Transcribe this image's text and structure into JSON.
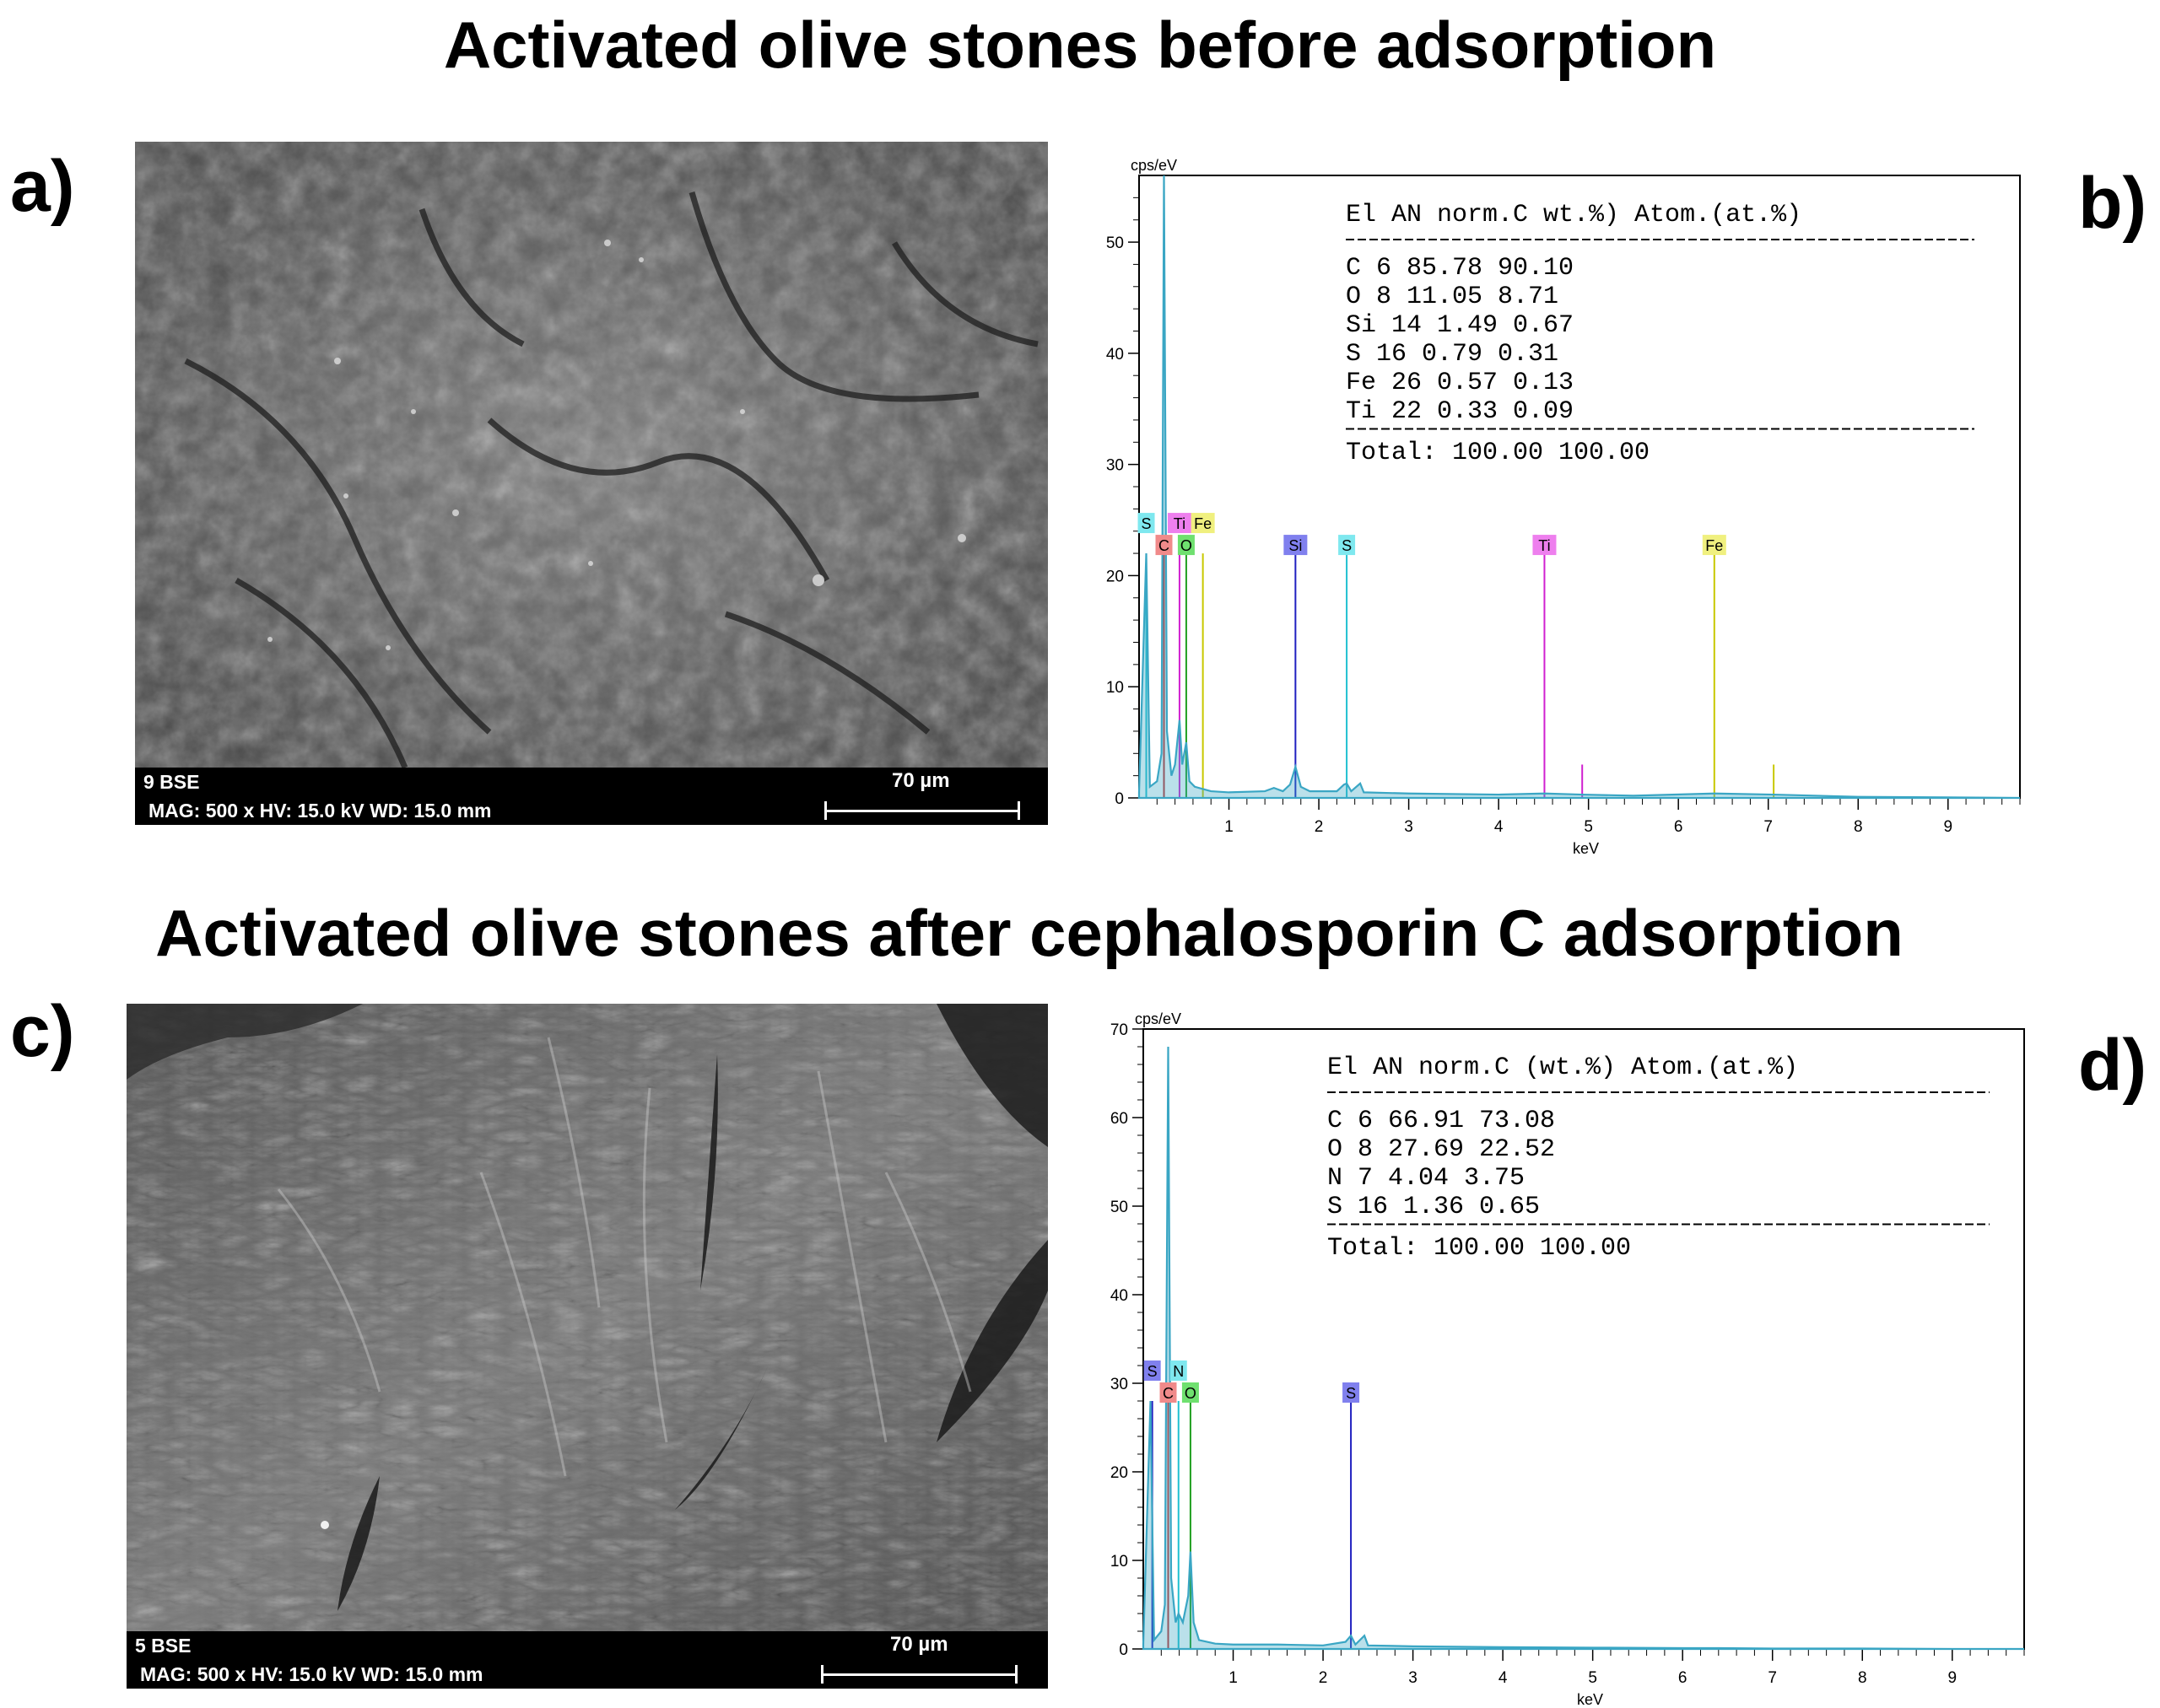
{
  "figure": {
    "title_top": "Activated olive stones before adsorption",
    "title_bottom": "Activated olive stones after cephalosporin C adsorption",
    "panel_labels": {
      "a": "a)",
      "b": "b)",
      "c": "c)",
      "d": "d)"
    }
  },
  "sem_a": {
    "detector": "9  BSE",
    "info": "MAG: 500 x   HV: 15.0 kV   WD: 15.0 mm",
    "scale_label": "70 µm"
  },
  "sem_c": {
    "detector": "5  BSE",
    "info": "MAG: 500 x   HV: 15.0 kV   WD: 15.0 mm",
    "scale_label": "70 µm"
  },
  "chart_data": [
    {
      "type": "line",
      "panel": "b",
      "ylabel": "cps/eV",
      "xlabel": "keV",
      "xlim": [
        0,
        9.8
      ],
      "ylim": [
        0,
        56
      ],
      "xticks": [
        1,
        2,
        3,
        4,
        5,
        6,
        7,
        8,
        9
      ],
      "yticks": [
        0,
        10,
        20,
        30,
        40,
        50
      ],
      "colors": {
        "spectrum": "#3aa6c4",
        "C": "#f08a8a",
        "O": "#6fe06f",
        "Si": "#8080ee",
        "S": "#7fe8ef",
        "Ti": "#ee7fee",
        "Fe": "#f0f07f"
      },
      "spectrum": [
        [
          0,
          0.5
        ],
        [
          0.08,
          22
        ],
        [
          0.12,
          1
        ],
        [
          0.2,
          1.5
        ],
        [
          0.25,
          4
        ],
        [
          0.277,
          56
        ],
        [
          0.31,
          6
        ],
        [
          0.36,
          2
        ],
        [
          0.4,
          3
        ],
        [
          0.45,
          7
        ],
        [
          0.48,
          3
        ],
        [
          0.525,
          5
        ],
        [
          0.56,
          1.5
        ],
        [
          0.62,
          1
        ],
        [
          0.71,
          0.8
        ],
        [
          0.8,
          0.6
        ],
        [
          1.0,
          0.5
        ],
        [
          1.4,
          0.6
        ],
        [
          1.5,
          0.9
        ],
        [
          1.6,
          0.6
        ],
        [
          1.68,
          1.2
        ],
        [
          1.74,
          2.8
        ],
        [
          1.8,
          1.0
        ],
        [
          1.9,
          0.6
        ],
        [
          2.2,
          0.6
        ],
        [
          2.28,
          1.2
        ],
        [
          2.31,
          1.3
        ],
        [
          2.36,
          0.6
        ],
        [
          2.46,
          1.3
        ],
        [
          2.5,
          0.5
        ],
        [
          3.0,
          0.4
        ],
        [
          4.0,
          0.3
        ],
        [
          4.51,
          0.4
        ],
        [
          4.93,
          0.3
        ],
        [
          5.5,
          0.2
        ],
        [
          6.4,
          0.4
        ],
        [
          7.06,
          0.3
        ],
        [
          8.0,
          0.1
        ],
        [
          9.0,
          0.05
        ],
        [
          9.8,
          0
        ]
      ],
      "element_peaks": [
        {
          "el": "S",
          "energy": 0.08,
          "marker": 22,
          "level": 2
        },
        {
          "el": "C",
          "energy": 0.277,
          "marker": 22,
          "level": 1
        },
        {
          "el": "Ti",
          "energy": 0.45,
          "marker": 22,
          "level": 2
        },
        {
          "el": "O",
          "energy": 0.525,
          "marker": 22,
          "level": 1
        },
        {
          "el": "Fe",
          "energy": 0.71,
          "marker": 22,
          "level": 2
        },
        {
          "el": "Si",
          "energy": 1.74,
          "marker": 22,
          "level": 1
        },
        {
          "el": "S",
          "energy": 2.31,
          "marker": 22,
          "level": 1
        },
        {
          "el": "Ti",
          "energy": 4.51,
          "marker": 22,
          "level": 1,
          "secondary_energy": 4.93,
          "secondary_height": 3
        },
        {
          "el": "Fe",
          "energy": 6.4,
          "marker": 22,
          "level": 1,
          "secondary_energy": 7.06,
          "secondary_height": 3
        }
      ],
      "table": {
        "header": "El  AN    norm.C wt.%)  Atom.(at.%)",
        "rows": [
          "C    6     85.78          90.10",
          "O    8     11.05           8.71",
          "Si  14      1.49           0.67",
          "S   16      0.79           0.31",
          "Fe  26      0.57           0.13",
          "Ti  22      0.33           0.09"
        ],
        "total": "    Total:  100.00        100.00"
      }
    },
    {
      "type": "line",
      "panel": "d",
      "ylabel": "cps/eV",
      "xlabel": "keV",
      "xlim": [
        0,
        9.8
      ],
      "ylim": [
        0,
        70
      ],
      "xticks": [
        1,
        2,
        3,
        4,
        5,
        6,
        7,
        8,
        9
      ],
      "yticks": [
        0,
        10,
        20,
        30,
        40,
        50,
        60,
        70
      ],
      "colors": {
        "spectrum": "#3aa6c4",
        "C": "#f08a8a",
        "N": "#7fe8ef",
        "O": "#6fe06f",
        "S": "#8080ee"
      },
      "spectrum": [
        [
          0,
          0.5
        ],
        [
          0.08,
          28
        ],
        [
          0.12,
          1
        ],
        [
          0.2,
          2
        ],
        [
          0.24,
          5
        ],
        [
          0.277,
          68
        ],
        [
          0.31,
          8
        ],
        [
          0.36,
          3
        ],
        [
          0.392,
          4
        ],
        [
          0.44,
          3
        ],
        [
          0.5,
          6
        ],
        [
          0.525,
          11
        ],
        [
          0.56,
          3
        ],
        [
          0.62,
          1
        ],
        [
          0.8,
          0.6
        ],
        [
          1.0,
          0.5
        ],
        [
          1.5,
          0.5
        ],
        [
          2.0,
          0.4
        ],
        [
          2.25,
          0.8
        ],
        [
          2.31,
          1.5
        ],
        [
          2.36,
          0.5
        ],
        [
          2.46,
          1.5
        ],
        [
          2.5,
          0.4
        ],
        [
          3.0,
          0.3
        ],
        [
          4.0,
          0.2
        ],
        [
          5.0,
          0.15
        ],
        [
          6.0,
          0.1
        ],
        [
          6.4,
          0.1
        ],
        [
          7.0,
          0.05
        ],
        [
          8.0,
          0.05
        ],
        [
          9.0,
          0
        ],
        [
          9.8,
          0
        ]
      ],
      "element_peaks": [
        {
          "el": "S",
          "energy": 0.1,
          "marker": 28,
          "level": 2
        },
        {
          "el": "C",
          "energy": 0.277,
          "marker": 28,
          "level": 1
        },
        {
          "el": "N",
          "energy": 0.392,
          "marker": 28,
          "level": 2
        },
        {
          "el": "O",
          "energy": 0.525,
          "marker": 28,
          "level": 1
        },
        {
          "el": "S",
          "energy": 2.31,
          "marker": 28,
          "level": 1
        }
      ],
      "table": {
        "header": "El  AN     norm.C (wt.%)  Atom.(at.%)",
        "rows": [
          "C    6        66.91       73.08",
          "O    8        27.69       22.52",
          "N    7         4.04        3.75",
          "S   16         1.36        0.65"
        ],
        "total": "      Total: 100.00      100.00"
      }
    }
  ]
}
